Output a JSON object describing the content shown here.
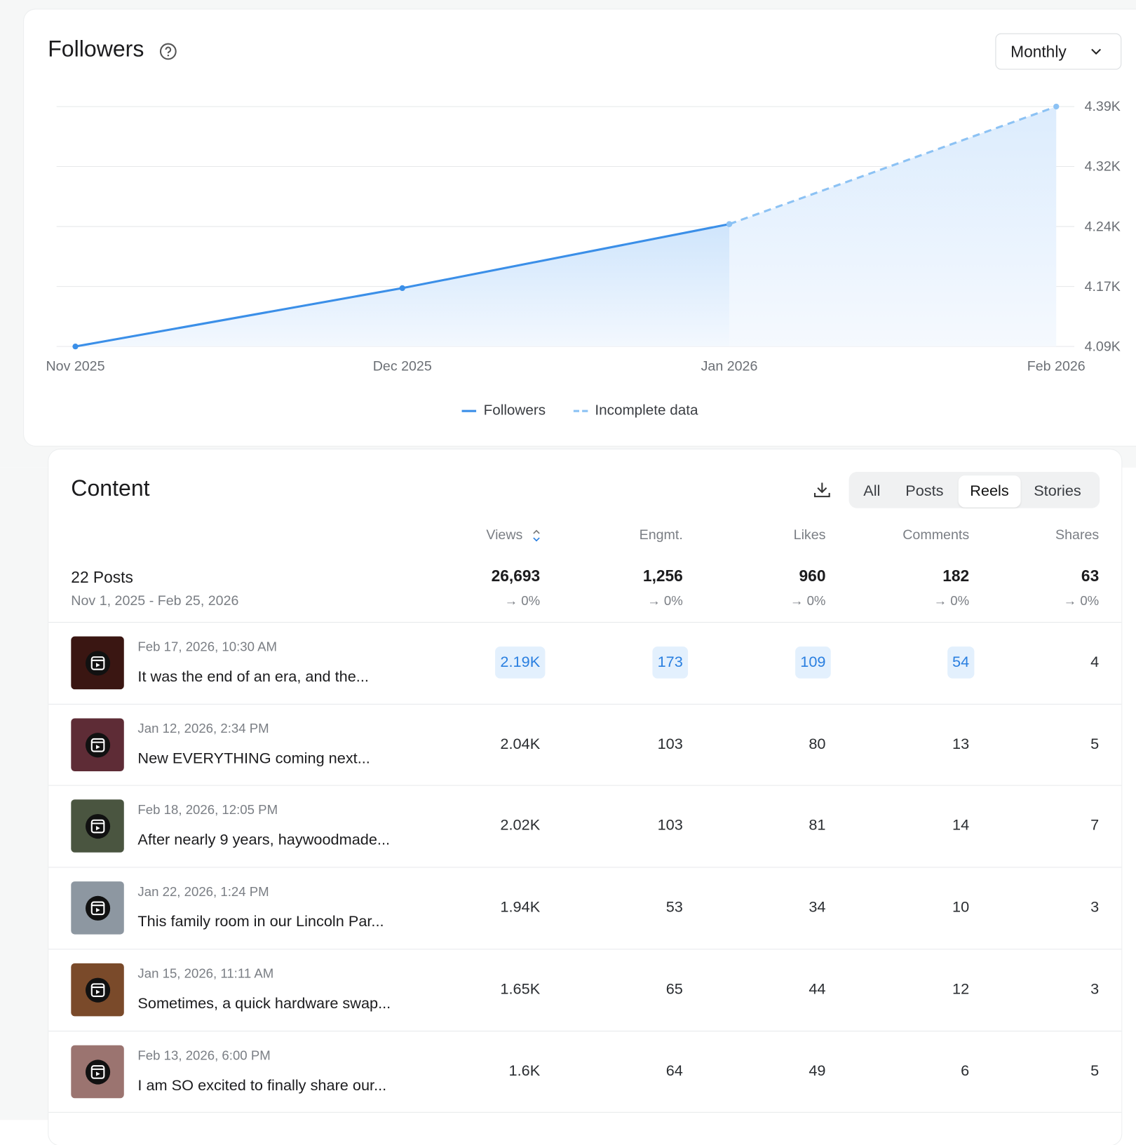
{
  "followers": {
    "title": "Followers",
    "period": "Monthly"
  },
  "chart_data": {
    "type": "line",
    "x": [
      "Nov 2025",
      "Dec 2025",
      "Jan 2026",
      "Feb 2026"
    ],
    "series": [
      {
        "name": "Followers",
        "color": "#3b8fe8",
        "dashed": false,
        "values": [
          4090,
          4163,
          4243,
          null
        ]
      },
      {
        "name": "Incomplete data",
        "color": "#8cc2f4",
        "dashed": true,
        "values": [
          null,
          null,
          4243,
          4390
        ]
      }
    ],
    "ylim": [
      4090,
      4390
    ],
    "yticks": [
      {
        "value": 4090,
        "label": "4.09K"
      },
      {
        "value": 4165,
        "label": "4.17K"
      },
      {
        "value": 4240,
        "label": "4.24K"
      },
      {
        "value": 4315,
        "label": "4.32K"
      },
      {
        "value": 4390,
        "label": "4.39K"
      }
    ],
    "grid": true
  },
  "content": {
    "title": "Content",
    "tabs": [
      "All",
      "Posts",
      "Reels",
      "Stories"
    ],
    "active_tab": 2,
    "columns": [
      "Views",
      "Engmt.",
      "Likes",
      "Comments",
      "Shares"
    ],
    "summary": {
      "count": "22 Posts",
      "range": "Nov 1, 2025 - Feb 25, 2026",
      "totals": [
        "26,693",
        "1,256",
        "960",
        "182",
        "63"
      ],
      "changes": [
        "→ 0%",
        "→ 0%",
        "→ 0%",
        "→ 0%",
        "→ 0%"
      ]
    },
    "highlighted_row": 0,
    "rows": [
      {
        "date": "Feb 17, 2026, 10:30 AM",
        "caption": "It was the end of an era, and the...",
        "values": [
          "2.19K",
          "173",
          "109",
          "54",
          "4"
        ]
      },
      {
        "date": "Jan 12, 2026, 2:34 PM",
        "caption": "New EVERYTHING coming next...",
        "values": [
          "2.04K",
          "103",
          "80",
          "13",
          "5"
        ]
      },
      {
        "date": "Feb 18, 2026, 12:05 PM",
        "caption": "After nearly 9 years, haywoodmade...",
        "values": [
          "2.02K",
          "103",
          "81",
          "14",
          "7"
        ]
      },
      {
        "date": "Jan 22, 2026, 1:24 PM",
        "caption": "This family room in our Lincoln Par...",
        "values": [
          "1.94K",
          "53",
          "34",
          "10",
          "3"
        ]
      },
      {
        "date": "Jan 15, 2026, 11:11 AM",
        "caption": "Sometimes, a quick hardware swap...",
        "values": [
          "1.65K",
          "65",
          "44",
          "12",
          "3"
        ]
      },
      {
        "date": "Feb 13, 2026, 6:00 PM",
        "caption": "I am SO excited to finally share our...",
        "values": [
          "1.6K",
          "64",
          "49",
          "6",
          "5"
        ]
      }
    ]
  }
}
